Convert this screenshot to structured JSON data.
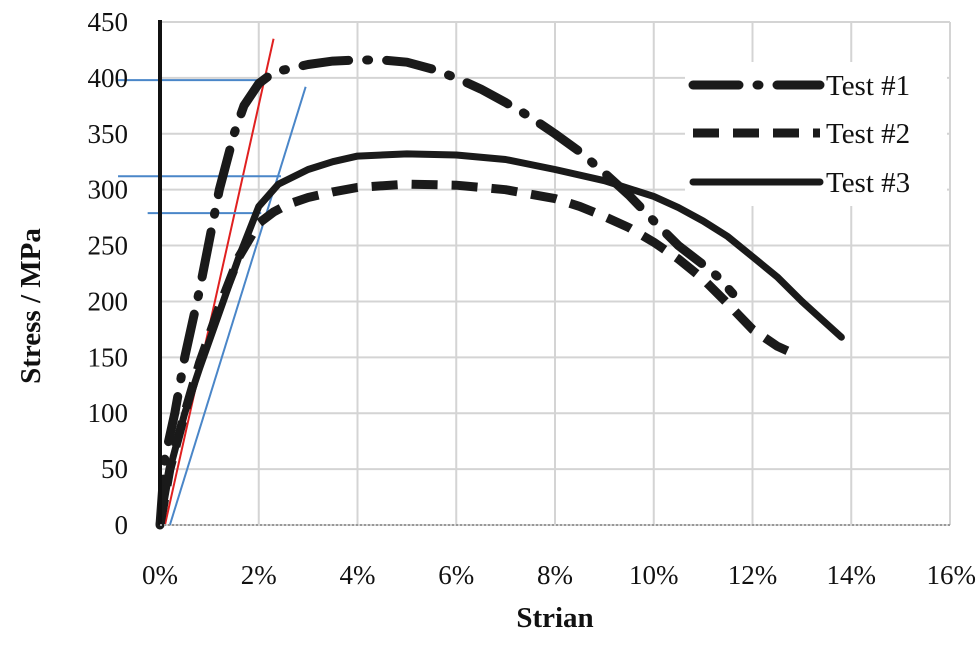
{
  "chart_data": {
    "type": "line",
    "title": "",
    "xlabel": "Strian",
    "ylabel": "Stress / MPa",
    "xlim": [
      0,
      16
    ],
    "ylim": [
      0,
      450
    ],
    "x_unit": "%",
    "xticks": [
      "0%",
      "2%",
      "4%",
      "6%",
      "8%",
      "10%",
      "12%",
      "14%",
      "16%"
    ],
    "yticks": [
      "0",
      "50",
      "100",
      "150",
      "200",
      "250",
      "300",
      "350",
      "400",
      "450"
    ],
    "grid": true,
    "legend_position": "top-right",
    "series": [
      {
        "name": "Test #1",
        "style": "dash-dot",
        "color": "#1a1a1a",
        "x": [
          0,
          0.1,
          0.3,
          0.5,
          0.8,
          1.0,
          1.2,
          1.5,
          1.7,
          2.0,
          2.3,
          2.6,
          3.0,
          3.5,
          4.0,
          4.5,
          5.0,
          5.5,
          6.0,
          6.5,
          7.0,
          7.5,
          8.0,
          8.5,
          9.0,
          9.5,
          10.0,
          10.5,
          11.0,
          11.3,
          11.6
        ],
        "y": [
          0,
          60,
          100,
          150,
          210,
          255,
          300,
          350,
          375,
          395,
          405,
          408,
          412,
          415,
          416,
          416,
          414,
          408,
          400,
          390,
          378,
          365,
          350,
          334,
          315,
          295,
          272,
          250,
          233,
          222,
          207
        ]
      },
      {
        "name": "Test #2",
        "style": "dash",
        "color": "#1a1a1a",
        "x": [
          0,
          0.2,
          0.5,
          0.8,
          1.2,
          1.6,
          2.0,
          2.3,
          2.6,
          3.0,
          3.5,
          4.0,
          5.0,
          6.0,
          7.0,
          8.0,
          8.5,
          9.0,
          9.5,
          10.0,
          10.5,
          11.0,
          11.5,
          12.0,
          12.5,
          12.8
        ],
        "y": [
          0,
          50,
          100,
          145,
          195,
          240,
          270,
          280,
          287,
          293,
          298,
          302,
          305,
          304,
          300,
          292,
          285,
          276,
          266,
          253,
          238,
          220,
          198,
          175,
          160,
          154
        ]
      },
      {
        "name": "Test #3",
        "style": "solid",
        "color": "#1a1a1a",
        "x": [
          0,
          0.2,
          0.5,
          0.8,
          1.2,
          1.6,
          2.0,
          2.4,
          3.0,
          3.5,
          4.0,
          5.0,
          6.0,
          7.0,
          8.0,
          9.0,
          10.0,
          10.5,
          11.0,
          11.5,
          12.0,
          12.5,
          13.0,
          13.5,
          13.8
        ],
        "y": [
          0,
          50,
          100,
          140,
          190,
          240,
          285,
          305,
          318,
          325,
          330,
          332,
          331,
          327,
          318,
          308,
          294,
          284,
          272,
          258,
          240,
          222,
          200,
          180,
          168
        ]
      }
    ],
    "annotations": [
      {
        "type": "tangent-line",
        "color": "#e02020",
        "from": [
          0.1,
          0
        ],
        "to": [
          2.3,
          435
        ]
      },
      {
        "type": "offset-line",
        "color": "#4a86c8",
        "from": [
          0.2,
          0
        ],
        "to": [
          2.95,
          392
        ]
      },
      {
        "type": "h-line",
        "color": "#4a86c8",
        "x_range": [
          -0.85,
          2.1
        ],
        "y": 398
      },
      {
        "type": "h-line",
        "color": "#4a86c8",
        "x_range": [
          -0.85,
          2.45
        ],
        "y": 312
      },
      {
        "type": "h-line",
        "color": "#4a86c8",
        "x_range": [
          -0.25,
          2.05
        ],
        "y": 279
      }
    ]
  }
}
